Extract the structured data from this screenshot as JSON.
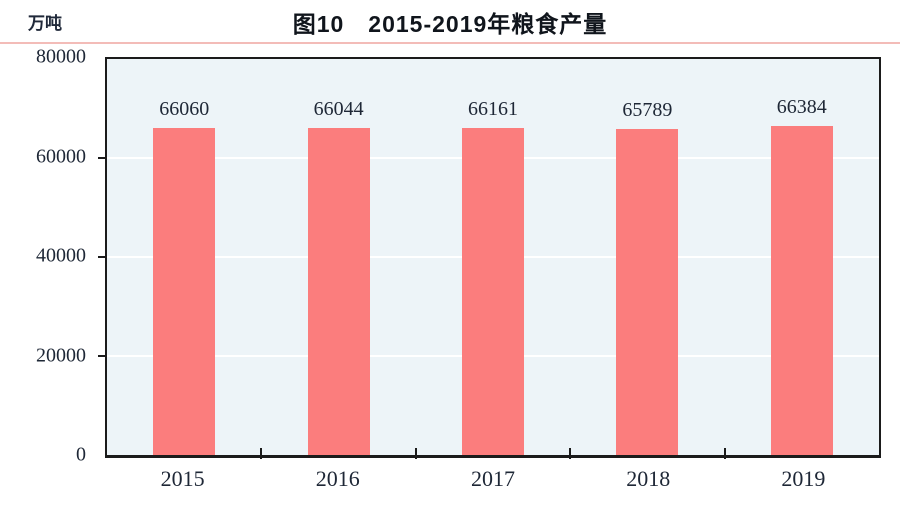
{
  "header": {
    "title": "图10　2015-2019年粮食产量",
    "unit_label": "万吨"
  },
  "colors": {
    "bar": "#fb7d7d",
    "plot_background": "#edf4f8",
    "gridline": "#ffffff",
    "axis_border": "#1b1b1b",
    "title_rule": "#f3bcb8",
    "text": "#1e2736"
  },
  "chart_data": {
    "type": "bar",
    "title": "图10　2015-2019年粮食产量",
    "unit": "万吨",
    "categories": [
      "2015",
      "2016",
      "2017",
      "2018",
      "2019"
    ],
    "values": [
      66060,
      66044,
      66161,
      65789,
      66384
    ],
    "value_labels": [
      "66060",
      "66044",
      "66161",
      "65789",
      "66384"
    ],
    "xlabel": "",
    "ylabel": "万吨",
    "ylim": [
      0,
      80000
    ],
    "yticks": [
      0,
      20000,
      40000,
      60000,
      80000
    ],
    "grid": "horizontal",
    "legend_position": "none"
  }
}
